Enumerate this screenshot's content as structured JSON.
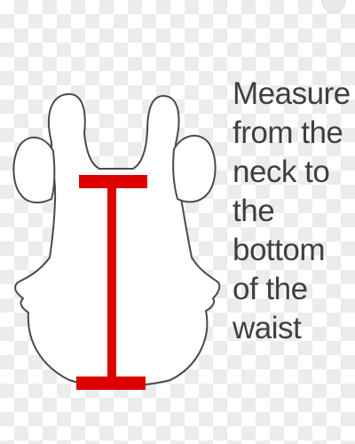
{
  "instruction": {
    "lines": [
      "Measure",
      "from the",
      "neck to",
      "the",
      "bottom",
      "of the",
      "waist"
    ]
  },
  "colors": {
    "garment_fill": "#ffffff",
    "garment_outline": "#4a4a4a",
    "measure_line": "#dd0000",
    "text": "#3f3f3f",
    "checker_light": "#ffffff",
    "checker_dark": "#ececec"
  },
  "icons": {
    "garment": "garment-silhouette-icon",
    "measure": "i-beam-measure-icon"
  }
}
